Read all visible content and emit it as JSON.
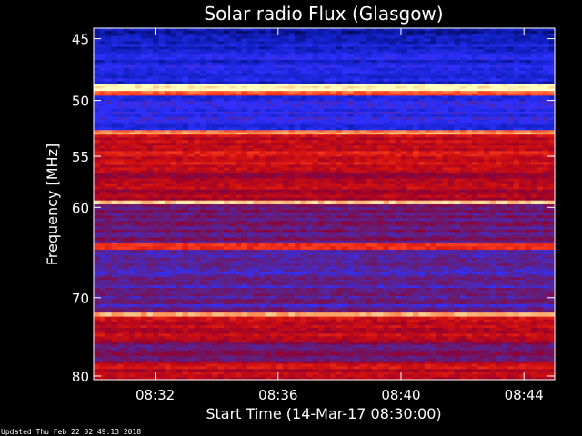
{
  "chart_data": {
    "type": "heatmap",
    "title": "Solar radio Flux (Glasgow)",
    "xlabel": "Start Time (14-Mar-17 08:30:00)",
    "ylabel": "Frequency [MHz]",
    "x_range": [
      "08:30:00",
      "08:45:00"
    ],
    "x_ticks": [
      "08:32",
      "08:36",
      "08:40",
      "08:44"
    ],
    "x_tick_minutes": [
      2,
      6,
      10,
      14
    ],
    "x_span_minutes": 15,
    "ylim": [
      44.2,
      80.5
    ],
    "y_reversed": true,
    "y_ticks": [
      45,
      50,
      55,
      60,
      70,
      80
    ],
    "y_scale": "log",
    "colormap": [
      "#000040",
      "#1020c0",
      "#3030ff",
      "#602080",
      "#900030",
      "#d01010",
      "#ff4020",
      "#ffa060",
      "#ffffc0"
    ],
    "bands": [
      {
        "f0": 44.2,
        "f1": 45.0,
        "intensity": 0.1
      },
      {
        "f0": 45.0,
        "f1": 48.6,
        "intensity": 0.18
      },
      {
        "f0": 48.6,
        "f1": 49.2,
        "intensity": 1.0
      },
      {
        "f0": 49.2,
        "f1": 49.6,
        "intensity": 0.75
      },
      {
        "f0": 49.6,
        "f1": 52.6,
        "intensity": 0.22
      },
      {
        "f0": 52.6,
        "f1": 53.0,
        "intensity": 0.85
      },
      {
        "f0": 53.0,
        "f1": 55.8,
        "intensity": 0.62
      },
      {
        "f0": 55.8,
        "f1": 59.3,
        "intensity": 0.56
      },
      {
        "f0": 59.3,
        "f1": 59.7,
        "intensity": 0.9
      },
      {
        "f0": 59.7,
        "f1": 63.8,
        "intensity": 0.4
      },
      {
        "f0": 63.8,
        "f1": 64.5,
        "intensity": 0.7
      },
      {
        "f0": 64.5,
        "f1": 71.8,
        "intensity": 0.35
      },
      {
        "f0": 71.8,
        "f1": 72.3,
        "intensity": 0.95
      },
      {
        "f0": 72.3,
        "f1": 75.5,
        "intensity": 0.58
      },
      {
        "f0": 75.5,
        "f1": 78.0,
        "intensity": 0.42
      },
      {
        "f0": 78.0,
        "f1": 80.5,
        "intensity": 0.6
      }
    ]
  },
  "footer": {
    "updated": "Updated Thu Feb 22 02:49:13 2018"
  }
}
